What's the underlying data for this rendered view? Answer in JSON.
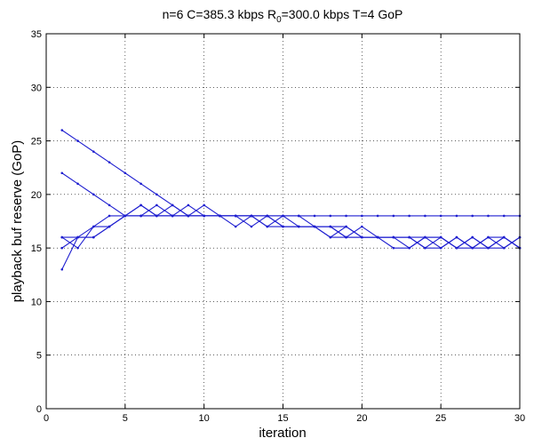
{
  "chart_data": {
    "type": "line",
    "title_parts": {
      "prefix": "n=6 C=385.3 kbps R",
      "subscript": "0",
      "suffix": "=300.0 kbps T=4 GoP"
    },
    "xlabel": "iteration",
    "ylabel": "playback buf reserve (GoP)",
    "xlim": [
      0,
      30
    ],
    "ylim": [
      0,
      35
    ],
    "xticks": [
      0,
      5,
      10,
      15,
      20,
      25,
      30
    ],
    "yticks": [
      0,
      5,
      10,
      15,
      20,
      25,
      30,
      35
    ],
    "grid": true,
    "line_color": "#1f1fd0",
    "x": [
      1,
      2,
      3,
      4,
      5,
      6,
      7,
      8,
      9,
      10,
      11,
      12,
      13,
      14,
      15,
      16,
      17,
      18,
      19,
      20,
      21,
      22,
      23,
      24,
      25,
      26,
      27,
      28,
      29,
      30
    ],
    "series": [
      {
        "values": [
          26,
          25,
          24,
          23,
          22,
          21,
          20,
          19,
          18,
          18,
          18,
          18,
          18,
          18,
          18,
          18,
          18,
          18,
          18,
          18,
          18,
          18,
          18,
          18,
          18,
          18,
          18,
          18,
          18,
          18
        ]
      },
      {
        "values": [
          22,
          21,
          20,
          19,
          18,
          18,
          18,
          18,
          18,
          18,
          18,
          18,
          17,
          18,
          17,
          17,
          17,
          17,
          16,
          16,
          16,
          16,
          16,
          15,
          15,
          16,
          15,
          15,
          16,
          15
        ]
      },
      {
        "values": [
          16,
          16,
          16,
          17,
          18,
          19,
          18,
          19,
          18,
          19,
          18,
          18,
          18,
          17,
          18,
          17,
          17,
          16,
          17,
          16,
          16,
          16,
          15,
          16,
          15,
          16,
          15,
          16,
          15,
          16
        ]
      },
      {
        "values": [
          16,
          15,
          17,
          17,
          18,
          18,
          19,
          18,
          19,
          18,
          18,
          18,
          18,
          18,
          18,
          18,
          17,
          17,
          16,
          17,
          16,
          16,
          16,
          16,
          16,
          15,
          16,
          15,
          16,
          15
        ]
      },
      {
        "values": [
          15,
          16,
          16,
          17,
          18,
          18,
          18,
          18,
          18,
          18,
          18,
          17,
          18,
          17,
          17,
          17,
          17,
          17,
          17,
          16,
          16,
          16,
          16,
          15,
          16,
          15,
          16,
          15,
          15,
          16
        ]
      },
      {
        "values": [
          13,
          16,
          17,
          18,
          18,
          19,
          18,
          18,
          18,
          18,
          18,
          18,
          18,
          18,
          17,
          17,
          17,
          16,
          16,
          16,
          16,
          15,
          15,
          16,
          16,
          15,
          15,
          16,
          16,
          15
        ]
      }
    ]
  }
}
